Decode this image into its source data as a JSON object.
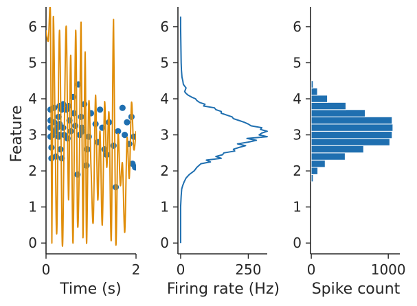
{
  "colors": {
    "blue": "#1f6fb0",
    "orange": "#e08e0b",
    "axis": "#262626"
  },
  "chart_data": [
    {
      "type": "scatter",
      "name": "spikes-vs-time",
      "xlabel": "Time (s)",
      "ylabel": "Feature",
      "xlim": [
        0,
        2
      ],
      "ylim": [
        -0.3,
        6.55
      ],
      "xticks": [
        0,
        2
      ],
      "yticks": [
        0,
        1,
        2,
        3,
        4,
        5,
        6
      ],
      "trajectory": {
        "t": [
          0.0,
          0.05,
          0.1,
          0.13,
          0.16,
          0.2,
          0.24,
          0.3,
          0.36,
          0.4,
          0.45,
          0.5,
          0.55,
          0.6,
          0.66,
          0.7,
          0.74,
          0.78,
          0.82,
          0.87,
          0.9,
          0.95,
          1.0,
          1.05,
          1.1,
          1.15,
          1.2,
          1.25,
          1.3,
          1.35,
          1.4,
          1.45,
          1.5,
          1.55,
          1.6,
          1.65,
          1.7,
          1.75,
          1.8,
          1.85,
          1.9,
          1.95,
          2.0
        ],
        "value": [
          5.9,
          5.6,
          6.28,
          0.0,
          6.2,
          3.4,
          0.3,
          5.9,
          0.0,
          2.6,
          6.0,
          1.2,
          5.2,
          0.0,
          5.9,
          0.6,
          2.2,
          6.1,
          0.15,
          5.3,
          0.0,
          3.9,
          2.1,
          0.6,
          4.1,
          1.2,
          3.1,
          0.5,
          3.9,
          2.1,
          3.6,
          0.1,
          6.2,
          0.0,
          3.0,
          1.6,
          2.2,
          0.3,
          2.9,
          1.8,
          3.9,
          2.6,
          3.1
        ]
      },
      "spikes": {
        "t": [
          0.1,
          0.1,
          0.1,
          0.1,
          0.12,
          0.12,
          0.15,
          0.18,
          0.18,
          0.2,
          0.22,
          0.25,
          0.28,
          0.28,
          0.3,
          0.3,
          0.3,
          0.32,
          0.35,
          0.35,
          0.38,
          0.38,
          0.4,
          0.45,
          0.48,
          0.5,
          0.52,
          0.55,
          0.6,
          0.62,
          0.65,
          0.7,
          0.72,
          0.75,
          0.78,
          0.8,
          0.82,
          0.85,
          0.9,
          0.92,
          0.95,
          1.0,
          1.1,
          1.15,
          1.2,
          1.25,
          1.3,
          1.35,
          1.4,
          1.5,
          1.55,
          1.6,
          1.7,
          1.75,
          1.8,
          1.85,
          1.9,
          1.92,
          1.95,
          1.98
        ],
        "value": [
          3.7,
          3.4,
          3.2,
          2.95,
          2.65,
          2.35,
          3.0,
          3.75,
          3.35,
          3.1,
          2.4,
          3.2,
          3.5,
          2.95,
          3.8,
          3.3,
          3.0,
          2.6,
          3.7,
          2.35,
          3.85,
          3.2,
          3.0,
          3.7,
          2.9,
          3.8,
          3.4,
          3.1,
          4.05,
          3.6,
          3.25,
          1.9,
          4.4,
          3.0,
          3.5,
          3.2,
          3.1,
          3.85,
          2.15,
          2.6,
          2.95,
          3.6,
          3.3,
          2.8,
          3.7,
          3.2,
          2.6,
          2.45,
          3.35,
          2.7,
          1.55,
          3.1,
          3.75,
          3.0,
          3.35,
          2.75,
          3.5,
          2.2,
          2.95,
          2.1
        ]
      }
    },
    {
      "type": "line",
      "name": "firing-rate",
      "xlabel": "Firing rate (Hz)",
      "xlim": [
        -10,
        320
      ],
      "ylim": [
        -0.3,
        6.55
      ],
      "xticks": [
        0,
        250
      ],
      "yticks": [
        0,
        1,
        2,
        3,
        4,
        5,
        6
      ],
      "y": [
        0.0,
        0.5,
        1.0,
        1.3,
        1.5,
        1.6,
        1.7,
        1.8,
        1.9,
        2.0,
        2.1,
        2.2,
        2.25,
        2.3,
        2.35,
        2.4,
        2.45,
        2.5,
        2.55,
        2.6,
        2.65,
        2.7,
        2.75,
        2.8,
        2.85,
        2.9,
        2.95,
        3.0,
        3.05,
        3.1,
        3.15,
        3.2,
        3.25,
        3.3,
        3.35,
        3.4,
        3.45,
        3.5,
        3.55,
        3.6,
        3.65,
        3.7,
        3.75,
        3.8,
        3.85,
        3.9,
        3.95,
        4.0,
        4.05,
        4.1,
        4.15,
        4.2,
        4.3,
        4.4,
        4.5,
        4.6,
        4.8,
        5.0,
        5.5,
        6.0,
        6.28
      ],
      "rate": [
        0,
        0,
        0,
        2,
        4,
        8,
        13,
        20,
        32,
        50,
        60,
        75,
        110,
        95,
        150,
        130,
        155,
        160,
        200,
        195,
        215,
        240,
        210,
        250,
        280,
        245,
        320,
        290,
        300,
        320,
        295,
        300,
        260,
        250,
        235,
        215,
        195,
        190,
        170,
        150,
        150,
        130,
        125,
        85,
        90,
        70,
        60,
        55,
        40,
        28,
        20,
        15,
        20,
        10,
        8,
        5,
        3,
        2,
        1,
        0,
        0
      ]
    },
    {
      "type": "bar",
      "orientation": "horizontal",
      "name": "spike-count",
      "xlabel": "Spike count",
      "xlim": [
        -10,
        1150
      ],
      "ylim": [
        -0.3,
        6.55
      ],
      "xticks": [
        0,
        1000
      ],
      "yticks": [
        0,
        1,
        2,
        3,
        4,
        5,
        6
      ],
      "bin_width": 0.2,
      "bin_starts": [
        1.7,
        1.9,
        2.1,
        2.3,
        2.5,
        2.7,
        2.9,
        3.1,
        3.3,
        3.5,
        3.7,
        3.9,
        4.1,
        4.3
      ],
      "counts": [
        25,
        85,
        180,
        440,
        680,
        1020,
        1050,
        1060,
        1050,
        700,
        450,
        210,
        80,
        25
      ]
    }
  ]
}
